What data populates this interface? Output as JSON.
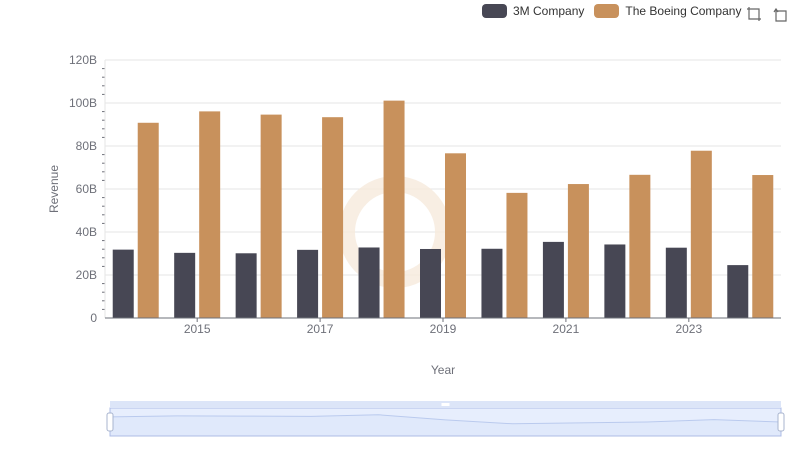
{
  "colors": {
    "series_3m": "#474754",
    "series_boeing": "#c8915c",
    "grid": "#e6e6e6",
    "axis_text": "#6e7079",
    "zoom_fill": "#d7e3fb",
    "zoom_border": "#aebce6"
  },
  "icons": {
    "zoom": "zoom-icon",
    "restore": "restore-icon"
  },
  "chart_data": {
    "type": "bar",
    "x": [
      2014,
      2015,
      2016,
      2017,
      2018,
      2019,
      2020,
      2021,
      2022,
      2023,
      2024
    ],
    "series": [
      {
        "name": "3M Company",
        "values": [
          31.8,
          30.3,
          30.1,
          31.7,
          32.8,
          32.1,
          32.2,
          35.4,
          34.2,
          32.7,
          24.6
        ]
      },
      {
        "name": "The Boeing Company",
        "values": [
          90.8,
          96.1,
          94.6,
          93.4,
          101.1,
          76.6,
          58.2,
          62.3,
          66.6,
          77.8,
          66.5
        ]
      }
    ],
    "xlabel": "Year",
    "ylabel": "Revenue",
    "ylim": [
      0,
      120
    ],
    "yticks": [
      "0",
      "20B",
      "40B",
      "60B",
      "80B",
      "100B",
      "120B"
    ],
    "xticks": [
      "2015",
      "2017",
      "2019",
      "2021",
      "2023"
    ],
    "grid": true,
    "legend_position": "top-right",
    "datazoom": {
      "start_percent": 0,
      "end_percent": 100
    }
  }
}
